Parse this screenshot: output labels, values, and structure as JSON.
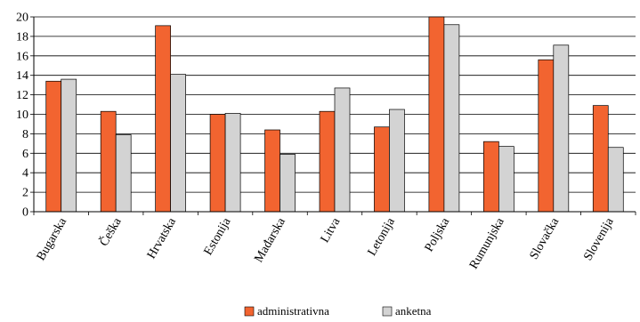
{
  "chart_data": {
    "type": "bar",
    "title": "",
    "xlabel": "",
    "ylabel": "",
    "ylim": [
      0,
      20
    ],
    "yticks": [
      0,
      2,
      4,
      6,
      8,
      10,
      12,
      14,
      16,
      18,
      20
    ],
    "grid": true,
    "legend_position": "bottom-center",
    "categories": [
      "Bugarska",
      "Češka",
      "Hrvatska",
      "Estonija",
      "Mađarska",
      "Litva",
      "Letonija",
      "Poljska",
      "Rumunjska",
      "Slovačka",
      "Slovenija"
    ],
    "series": [
      {
        "name": "administrativna",
        "color": "#f26430",
        "values": [
          13.4,
          10.3,
          19.1,
          10.0,
          8.4,
          10.3,
          8.7,
          20.0,
          7.2,
          15.6,
          10.9
        ]
      },
      {
        "name": "anketna",
        "color": "#d3d3d3",
        "values": [
          13.6,
          7.9,
          14.1,
          10.1,
          5.9,
          12.7,
          10.5,
          19.2,
          6.7,
          17.1,
          6.6
        ]
      }
    ]
  }
}
